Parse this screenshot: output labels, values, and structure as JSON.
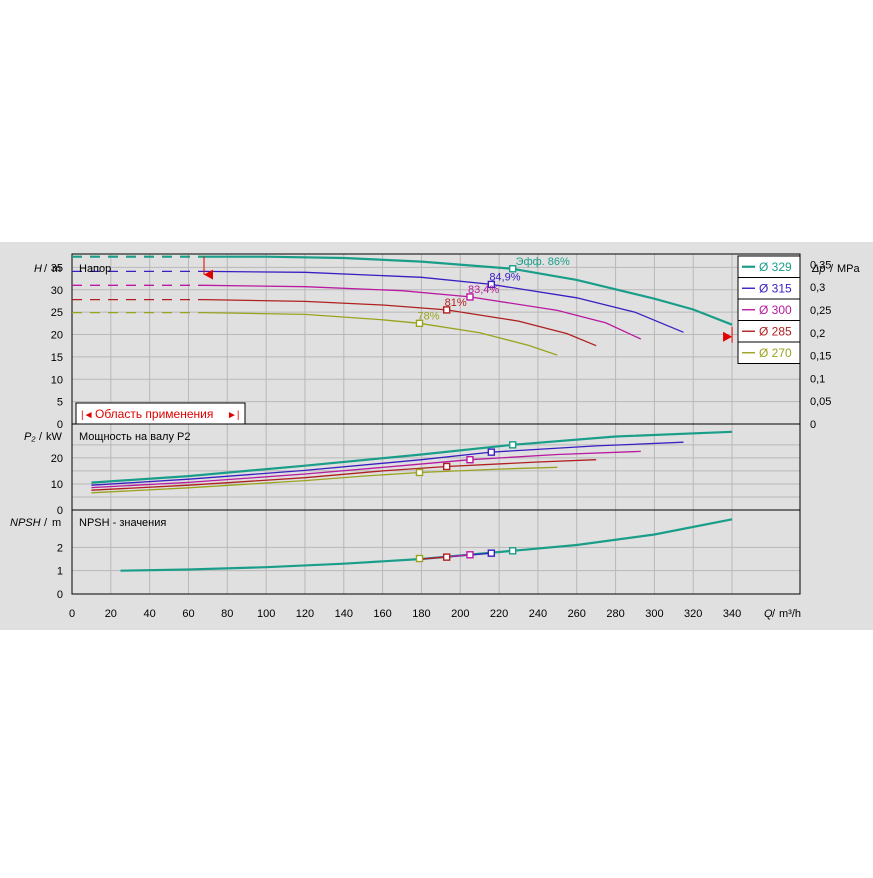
{
  "panels": {
    "head": {
      "title": "Напор",
      "ylabel_var": "H",
      "ylabel_unit": "m",
      "ylim": [
        0,
        38
      ],
      "yticks": [
        0,
        5,
        10,
        15,
        20,
        25,
        30,
        35
      ],
      "y2label_var": "Δp",
      "y2label_unit": "MPa",
      "y2ticks": [
        "0",
        "0,05",
        "0,1",
        "0,15",
        "0,2",
        "0,25",
        "0,3",
        "0,35"
      ],
      "range_label": "Область применения"
    },
    "power": {
      "title": "Мощность на валу P2",
      "ylabel_var": "P₂",
      "ylabel_unit": "kW",
      "ylim": [
        0,
        33
      ],
      "yticks": [
        0,
        10,
        20
      ]
    },
    "npsh": {
      "title": "NPSH - значения",
      "ylabel_var": "NPSH",
      "ylabel_unit": "m",
      "ylim": [
        0,
        3.6
      ],
      "yticks": [
        0,
        1,
        2
      ]
    }
  },
  "x_axis": {
    "label_var": "Q",
    "label_unit": "m³/h",
    "xlim": [
      0,
      375
    ],
    "ticks": [
      0,
      20,
      40,
      60,
      80,
      100,
      120,
      140,
      160,
      180,
      200,
      220,
      240,
      260,
      280,
      300,
      320,
      340
    ]
  },
  "colors": {
    "background": "#e0e0e0",
    "grid": "#b8b8b8",
    "axis": "#000000",
    "range_marker": "#e00000"
  },
  "chart_data": {
    "type": "line",
    "series": [
      {
        "name": "Ø 329",
        "color": "#1a9e8a",
        "bold": true,
        "eff_label": "Эфф.  86%",
        "bep": {
          "q": 227,
          "h": 34.7,
          "p": 25,
          "npsh": 1.85
        },
        "head_dashed": [
          [
            0,
            37.4
          ],
          [
            68,
            37.4
          ]
        ],
        "head": [
          [
            68,
            37.4
          ],
          [
            100,
            37.4
          ],
          [
            140,
            37.1
          ],
          [
            180,
            36.3
          ],
          [
            227,
            34.7
          ],
          [
            260,
            32.2
          ],
          [
            300,
            28.0
          ],
          [
            320,
            25.6
          ],
          [
            340,
            22.2
          ]
        ],
        "power": [
          [
            10,
            10.5
          ],
          [
            60,
            13.0
          ],
          [
            120,
            17.0
          ],
          [
            180,
            21.3
          ],
          [
            227,
            25.0
          ],
          [
            280,
            28.2
          ],
          [
            340,
            30.0
          ]
        ],
        "npsh": [
          [
            25,
            1.0
          ],
          [
            60,
            1.05
          ],
          [
            100,
            1.15
          ],
          [
            140,
            1.3
          ],
          [
            180,
            1.5
          ],
          [
            227,
            1.85
          ],
          [
            260,
            2.1
          ],
          [
            300,
            2.55
          ],
          [
            340,
            3.2
          ]
        ]
      },
      {
        "name": "Ø 315",
        "color": "#3a1ec2",
        "bold": false,
        "eff_label": "84,9%",
        "bep": {
          "q": 216,
          "h": 31.2,
          "p": 22.2,
          "npsh": 1.75
        },
        "head_dashed": [
          [
            0,
            34.1
          ],
          [
            68,
            34.1
          ]
        ],
        "head": [
          [
            68,
            34.1
          ],
          [
            120,
            33.9
          ],
          [
            180,
            32.8
          ],
          [
            216,
            31.2
          ],
          [
            260,
            28.2
          ],
          [
            290,
            25.0
          ],
          [
            315,
            20.5
          ]
        ],
        "power": [
          [
            10,
            9.5
          ],
          [
            60,
            11.8
          ],
          [
            120,
            15.2
          ],
          [
            180,
            19.3
          ],
          [
            216,
            22.2
          ],
          [
            270,
            24.6
          ],
          [
            315,
            26.0
          ]
        ],
        "npsh": [
          [
            180,
            1.5
          ],
          [
            216,
            1.75
          ]
        ]
      },
      {
        "name": "Ø 300",
        "color": "#b81aa0",
        "bold": false,
        "eff_label": "83,4%",
        "bep": {
          "q": 205,
          "h": 28.4,
          "p": 19.3,
          "npsh": 1.68
        },
        "head_dashed": [
          [
            0,
            31.0
          ],
          [
            68,
            31.0
          ]
        ],
        "head": [
          [
            68,
            31.0
          ],
          [
            120,
            30.7
          ],
          [
            170,
            29.8
          ],
          [
            205,
            28.4
          ],
          [
            250,
            25.4
          ],
          [
            275,
            22.6
          ],
          [
            293,
            19.0
          ]
        ],
        "power": [
          [
            10,
            8.6
          ],
          [
            60,
            10.6
          ],
          [
            120,
            13.8
          ],
          [
            170,
            17.0
          ],
          [
            205,
            19.3
          ],
          [
            250,
            21.3
          ],
          [
            293,
            22.5
          ]
        ],
        "npsh": [
          [
            180,
            1.5
          ],
          [
            205,
            1.68
          ]
        ]
      },
      {
        "name": "Ø 285",
        "color": "#b02020",
        "bold": false,
        "eff_label": "81%",
        "bep": {
          "q": 193,
          "h": 25.5,
          "p": 16.7,
          "npsh": 1.58
        },
        "head_dashed": [
          [
            0,
            27.8
          ],
          [
            68,
            27.8
          ]
        ],
        "head": [
          [
            68,
            27.8
          ],
          [
            120,
            27.4
          ],
          [
            160,
            26.6
          ],
          [
            193,
            25.5
          ],
          [
            230,
            23.0
          ],
          [
            255,
            20.2
          ],
          [
            270,
            17.5
          ]
        ],
        "power": [
          [
            10,
            7.6
          ],
          [
            60,
            9.5
          ],
          [
            120,
            12.4
          ],
          [
            160,
            15.0
          ],
          [
            193,
            16.7
          ],
          [
            240,
            18.4
          ],
          [
            270,
            19.3
          ]
        ],
        "npsh": [
          [
            180,
            1.5
          ],
          [
            193,
            1.58
          ]
        ]
      },
      {
        "name": "Ø 270",
        "color": "#9aa320",
        "bold": false,
        "eff_label": "78%",
        "bep": {
          "q": 179,
          "h": 22.5,
          "p": 14.4,
          "npsh": 1.52
        },
        "head_dashed": [
          [
            0,
            24.9
          ],
          [
            68,
            24.9
          ]
        ],
        "head": [
          [
            68,
            24.9
          ],
          [
            120,
            24.5
          ],
          [
            160,
            23.3
          ],
          [
            179,
            22.5
          ],
          [
            210,
            20.4
          ],
          [
            235,
            17.6
          ],
          [
            250,
            15.4
          ]
        ],
        "power": [
          [
            10,
            6.6
          ],
          [
            60,
            8.5
          ],
          [
            120,
            11.3
          ],
          [
            150,
            13.0
          ],
          [
            179,
            14.4
          ],
          [
            220,
            15.7
          ],
          [
            250,
            16.4
          ]
        ],
        "npsh": [
          [
            180,
            1.52
          ]
        ]
      }
    ]
  }
}
